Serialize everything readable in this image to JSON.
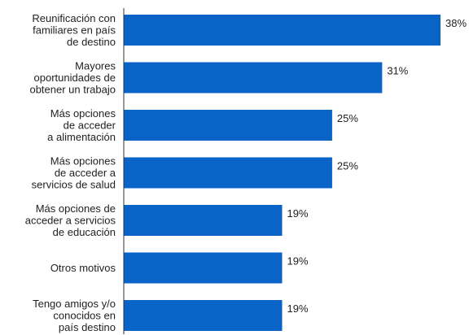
{
  "chart_data": {
    "type": "bar",
    "orientation": "horizontal",
    "bar_color": "#0a64c8",
    "axis_color": "#333333",
    "value_suffix": "%",
    "xlim": [
      0,
      38
    ],
    "grid": false,
    "legend": "none",
    "categories": [
      [
        "Reunificación con",
        "familiares en país",
        "de destino"
      ],
      [
        "Mayores",
        "oportunidades de",
        "obtener un trabajo"
      ],
      [
        "Más opciones",
        "de acceder",
        "a alimentación"
      ],
      [
        "Más opciones",
        "de acceder a",
        "servicios de salud"
      ],
      [
        "Más opciones de",
        "acceder a servicios",
        "de educación"
      ],
      [
        "Otros motivos"
      ],
      [
        "Tengo amigos y/o",
        "conocidos en",
        "país destino"
      ]
    ],
    "values": [
      38,
      31,
      25,
      25,
      19,
      19,
      19
    ]
  }
}
